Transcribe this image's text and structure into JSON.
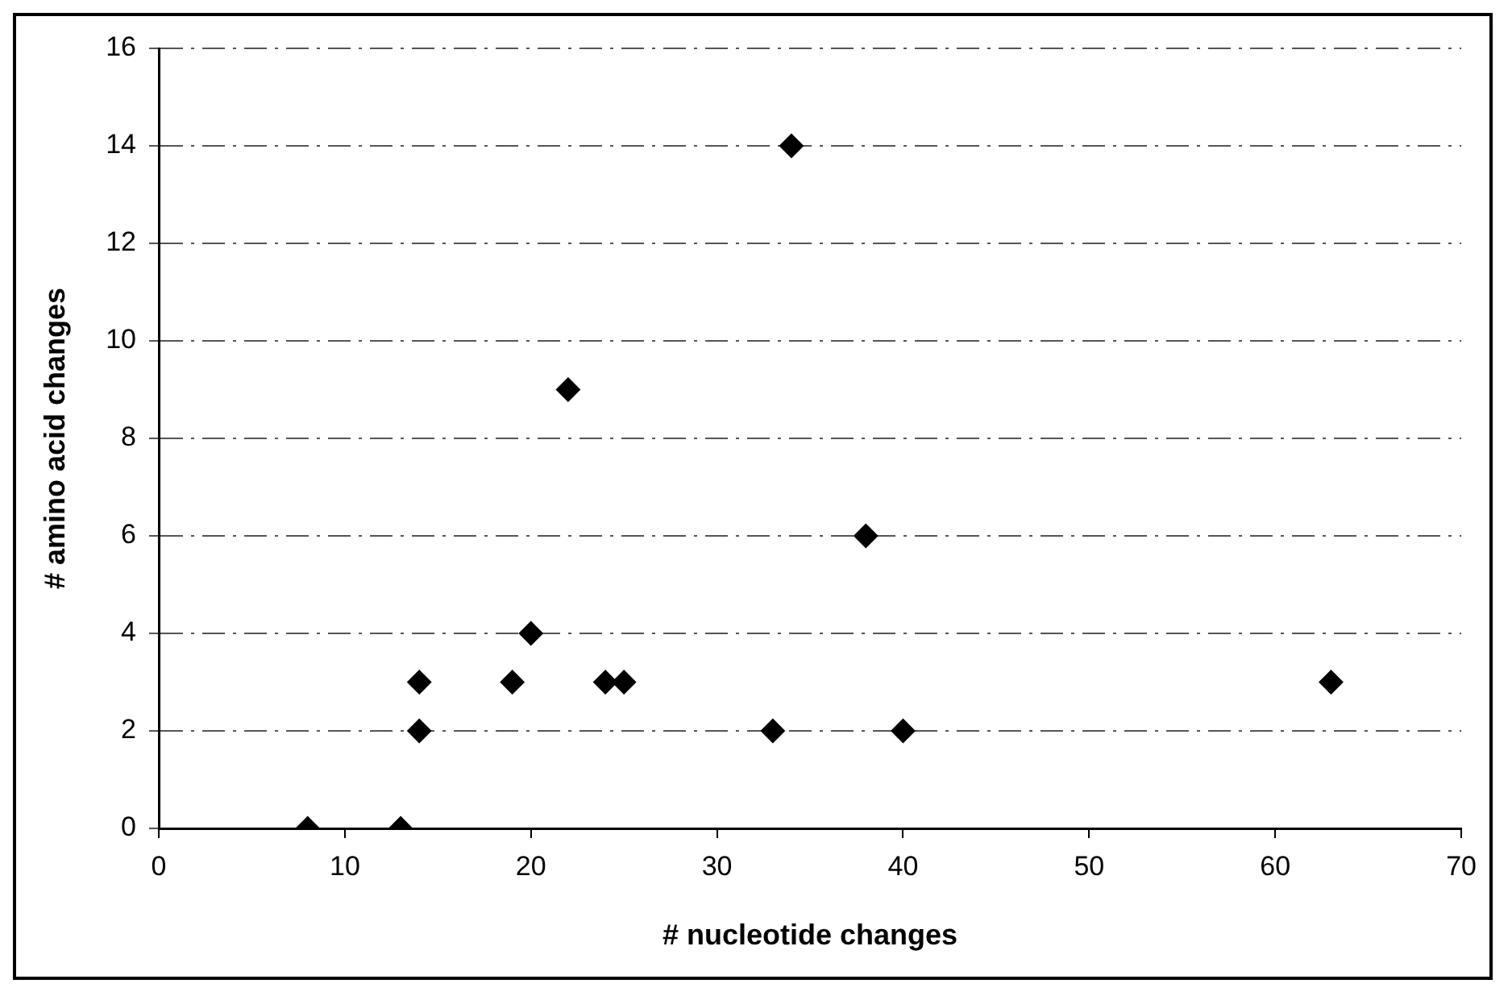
{
  "chart_data": {
    "type": "scatter",
    "xlabel": "# nucleotide changes",
    "ylabel": "# amino acid changes",
    "x": [
      8,
      13,
      14,
      14,
      19,
      20,
      22,
      24,
      25,
      33,
      34,
      38,
      40,
      63
    ],
    "values": [
      0,
      0,
      3,
      2,
      3,
      4,
      9,
      3,
      3,
      2,
      14,
      6,
      2,
      3
    ],
    "color": "#000000",
    "marker": "diamond",
    "xlim": [
      0,
      70
    ],
    "xticks": [
      0,
      10,
      20,
      30,
      40,
      50,
      60,
      70
    ],
    "ylim": [
      0,
      16
    ],
    "yticks": [
      0,
      2,
      4,
      6,
      8,
      10,
      12,
      14,
      16
    ],
    "grid": "y",
    "line_style": "dashed",
    "legend": false
  }
}
